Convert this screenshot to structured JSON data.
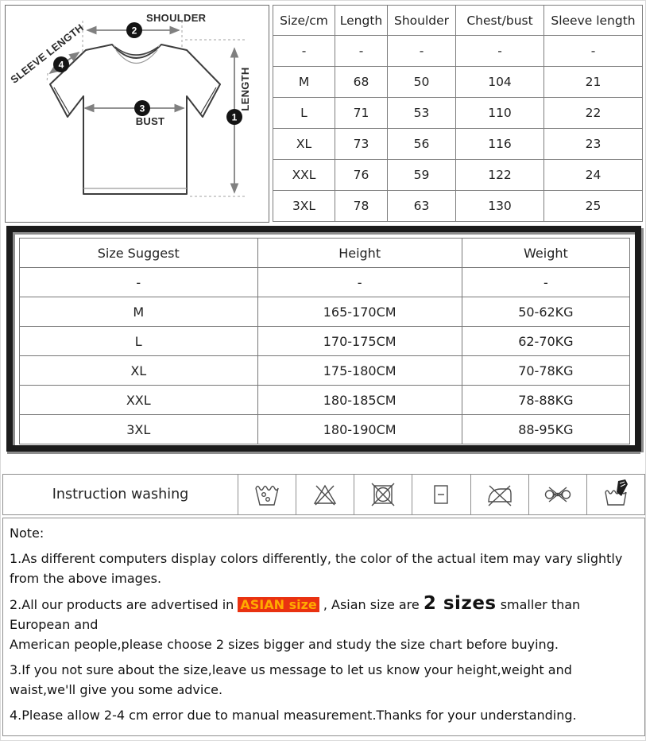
{
  "diagram": {
    "labels": {
      "shoulder": "SHOULDER",
      "sleeve_length": "SLEEVE LENGTH",
      "bust": "BUST",
      "length": "LENGTH"
    },
    "markers": {
      "length": "1",
      "shoulder": "2",
      "bust": "3",
      "sleeve_length": "4"
    }
  },
  "size_table": {
    "headers": [
      "Size/cm",
      "Length",
      "Shoulder",
      "Chest/bust",
      "Sleeve length"
    ],
    "rows": [
      [
        "-",
        "-",
        "-",
        "-",
        "-"
      ],
      [
        "M",
        "68",
        "50",
        "104",
        "21"
      ],
      [
        "L",
        "71",
        "53",
        "110",
        "22"
      ],
      [
        "XL",
        "73",
        "56",
        "116",
        "23"
      ],
      [
        "XXL",
        "76",
        "59",
        "122",
        "24"
      ],
      [
        "3XL",
        "78",
        "63",
        "130",
        "25"
      ]
    ]
  },
  "suggest_table": {
    "headers": [
      "Size Suggest",
      "Height",
      "Weight"
    ],
    "rows": [
      [
        "-",
        "-",
        "-"
      ],
      [
        "M",
        "165-170CM",
        "50-62KG"
      ],
      [
        "L",
        "170-175CM",
        "62-70KG"
      ],
      [
        "XL",
        "175-180CM",
        "70-78KG"
      ],
      [
        "XXL",
        "180-185CM",
        "78-88KG"
      ],
      [
        "3XL",
        "180-190CM",
        "88-95KG"
      ]
    ]
  },
  "washing": {
    "label": "Instruction washing",
    "icons": [
      "machine-wash",
      "do-not-bleach",
      "do-not-tumble-dry",
      "dry-flat",
      "do-not-iron",
      "do-not-wring",
      "hand-wash"
    ]
  },
  "notes": {
    "title": "Note:",
    "note1_line1": "1.As different computers display colors differently, the color of the actual item may vary slightly",
    "note1_line2": "from the above images.",
    "note2_pre": "2.All our products are advertised in ",
    "note2_highlight": "ASIAN size",
    "note2_mid": " , Asian size are ",
    "note2_big": "2 sizes",
    "note2_post": " smaller than",
    "note2_line2": "European and",
    "note2_line3": "American people,please choose 2 sizes bigger and study the size chart before buying.",
    "note3_line1": "3.If you not sure about the size,leave us message to let us know your height,weight and",
    "note3_line2": "waist,we'll give you some advice.",
    "note4": "4.Please allow 2-4 cm error due to manual measurement.Thanks for your understanding."
  },
  "colors": {
    "highlight_bg": "#e93211",
    "highlight_text": "#ffaa00",
    "suggest_border": "#1b1b1b",
    "grid_line": "#7d7d7d"
  }
}
